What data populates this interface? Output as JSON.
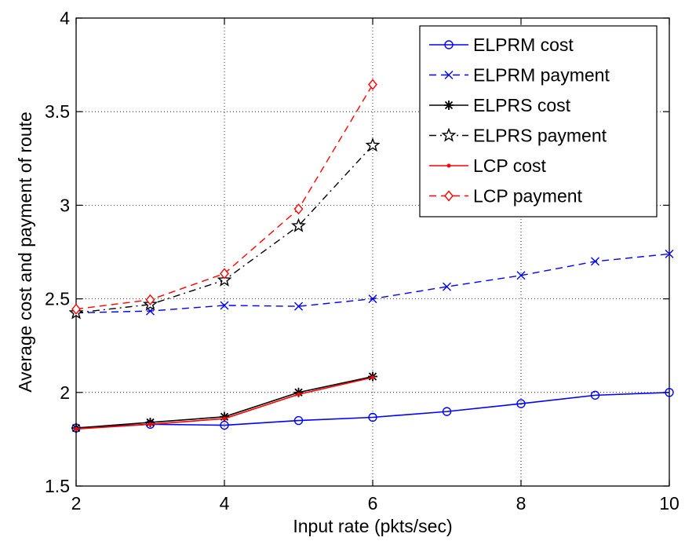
{
  "chart_data": {
    "type": "line",
    "xlabel": "Input rate (pkts/sec)",
    "ylabel": "Average cost and payment of route",
    "xlim": [
      2,
      10
    ],
    "ylim": [
      1.5,
      4
    ],
    "xticks": [
      "2",
      "4",
      "6",
      "8",
      "10"
    ],
    "yticks": [
      "1.5",
      "2",
      "2.5",
      "3",
      "3.5",
      "4"
    ],
    "grid": true,
    "legend_position": "top-right",
    "series": [
      {
        "name": "ELPRM cost",
        "color": "#0000ff",
        "dash": "solid",
        "marker": "circle",
        "x": [
          2,
          3,
          4,
          5,
          6,
          7,
          8,
          9,
          10
        ],
        "y": [
          1.81,
          1.83,
          1.825,
          1.85,
          1.867,
          1.898,
          1.94,
          1.985,
          2.0
        ]
      },
      {
        "name": "ELPRM payment",
        "color": "#0000ff",
        "dash": "dashed",
        "marker": "x",
        "x": [
          2,
          3,
          4,
          5,
          6,
          7,
          8,
          9,
          10
        ],
        "y": [
          2.425,
          2.435,
          2.465,
          2.46,
          2.5,
          2.565,
          2.625,
          2.7,
          2.74
        ]
      },
      {
        "name": "ELPRS cost",
        "color": "#000000",
        "dash": "solid",
        "marker": "asterisk",
        "x": [
          2,
          3,
          4,
          5,
          6
        ],
        "y": [
          1.81,
          1.84,
          1.87,
          2.0,
          2.085
        ]
      },
      {
        "name": "ELPRS payment",
        "color": "#000000",
        "dash": "dashdot",
        "marker": "star",
        "x": [
          2,
          3,
          4,
          5,
          6
        ],
        "y": [
          2.425,
          2.47,
          2.6,
          2.89,
          3.32
        ]
      },
      {
        "name": "LCP cost",
        "color": "#ff0000",
        "dash": "solid",
        "marker": "dot",
        "x": [
          2,
          3,
          4,
          5,
          6
        ],
        "y": [
          1.805,
          1.83,
          1.86,
          1.99,
          2.08
        ]
      },
      {
        "name": "LCP payment",
        "color": "#ff0000",
        "dash": "dashed",
        "marker": "diamond",
        "x": [
          2,
          3,
          4,
          5,
          6
        ],
        "y": [
          2.445,
          2.495,
          2.635,
          2.98,
          3.645
        ]
      }
    ]
  }
}
